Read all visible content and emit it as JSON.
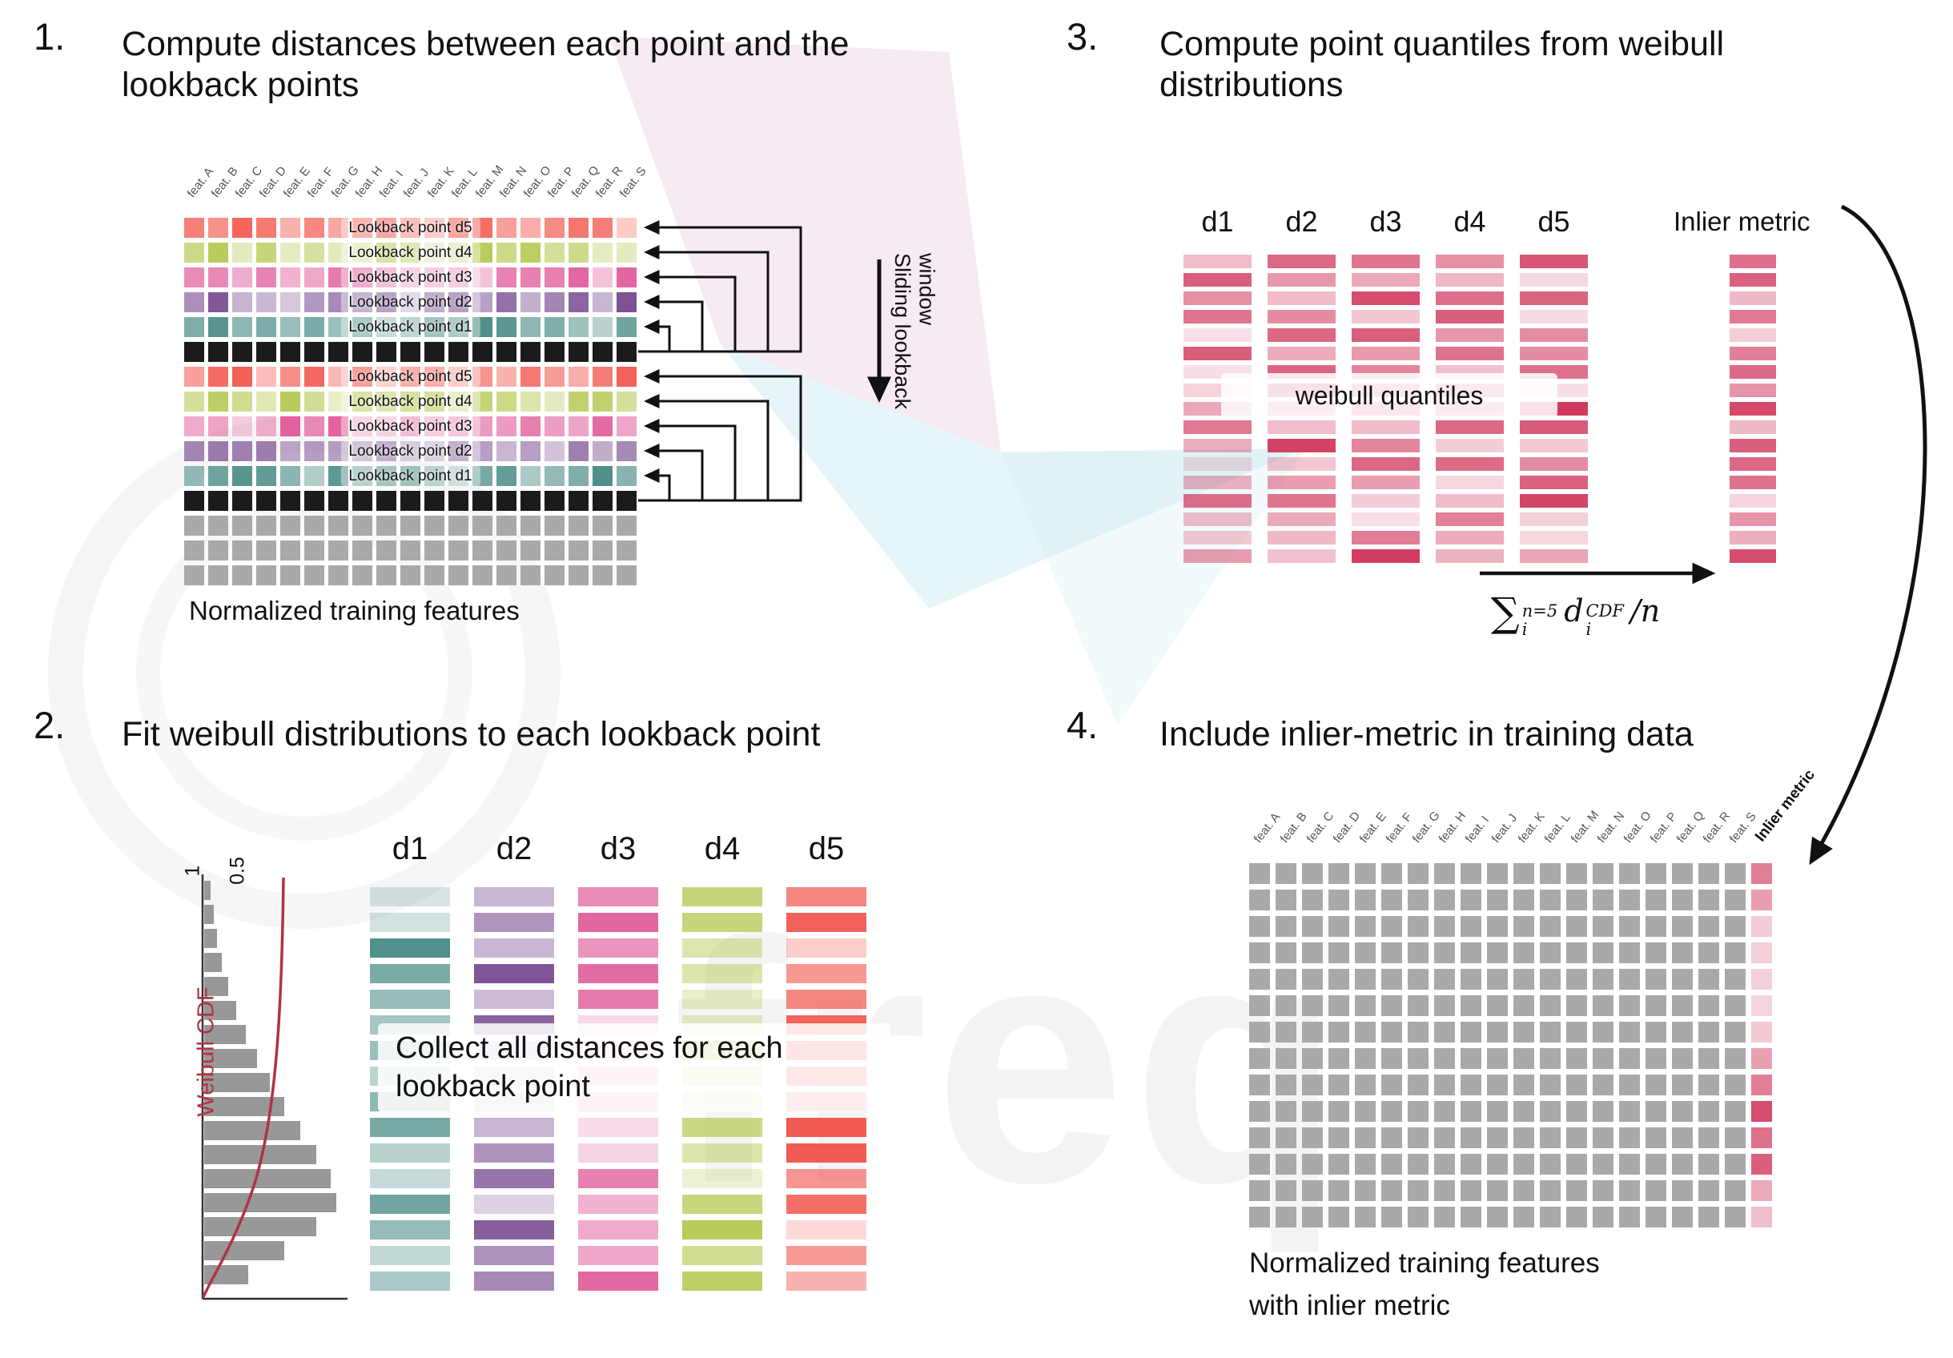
{
  "colors": {
    "d1": "#4f8f89",
    "d2": "#7d5295",
    "d3": "#e2619e",
    "d4": "#b4c74d",
    "d5": "#f2564d",
    "black_row": "#1b1b1b",
    "gray_cell": "#a9a9a9",
    "quantile": "#d13a5e",
    "cdf_curve": "#b03344"
  },
  "feature_labels": [
    "feat. A",
    "feat. B",
    "feat. C",
    "feat. D",
    "feat. E",
    "feat. F",
    "feat. G",
    "feat. H",
    "feat. I",
    "feat. J",
    "feat. K",
    "feat. L",
    "feat. M",
    "feat. N",
    "feat. O",
    "feat. P",
    "feat. Q",
    "feat. R",
    "feat. S"
  ],
  "step1": {
    "number": "1.",
    "title": "Compute distances between each point and the lookback points",
    "caption": "Normalized training features",
    "sliding_window_label": "Sliding lookback window",
    "grid_rows": [
      {
        "kind": "d5",
        "label": "Lookback point d5"
      },
      {
        "kind": "d4",
        "label": "Lookback point d4"
      },
      {
        "kind": "d3",
        "label": "Lookback point d3"
      },
      {
        "kind": "d2",
        "label": "Lookback point d2"
      },
      {
        "kind": "d1",
        "label": "Lookback point d1"
      },
      {
        "kind": "black"
      },
      {
        "kind": "d5",
        "label": "Lookback point d5"
      },
      {
        "kind": "d4",
        "label": "Lookback point d4"
      },
      {
        "kind": "d3",
        "label": "Lookback point d3"
      },
      {
        "kind": "d2",
        "label": "Lookback point d2"
      },
      {
        "kind": "d1",
        "label": "Lookback point d1"
      },
      {
        "kind": "black"
      },
      {
        "kind": "gray"
      },
      {
        "kind": "gray"
      },
      {
        "kind": "gray"
      }
    ]
  },
  "step2": {
    "number": "2.",
    "title": "Fit weibull distributions to each lookback point",
    "columns": [
      "d1",
      "d2",
      "d3",
      "d4",
      "d5"
    ],
    "bars_per_column": 16,
    "overlay": "Collect all distances for each lookback point",
    "histogram": {
      "ylabel": "Weibull CDF",
      "tick_1": "1",
      "tick_05": "0.5",
      "bar_lengths": [
        8,
        12,
        16,
        22,
        30,
        40,
        52,
        66,
        82,
        100,
        120,
        140,
        158,
        165,
        140,
        100,
        55
      ]
    }
  },
  "step3": {
    "number": "3.",
    "title": "Compute point quantiles from weibull distributions",
    "columns": [
      "d1",
      "d2",
      "d3",
      "d4",
      "d5"
    ],
    "bars_per_column": 17,
    "overlay": "weibull quantiles",
    "inlier_label": "Inlier metric",
    "formula": {
      "sigma": "∑",
      "upper": "n=5",
      "lower": "i",
      "term": "d",
      "term_sup": "CDF",
      "term_sub": "i",
      "tail": "/n"
    }
  },
  "step4": {
    "number": "4.",
    "title": "Include inlier-metric in training data",
    "caption_line1": "Normalized training features",
    "caption_line2": "with inlier metric",
    "inlier_col_label": "Inlier metric",
    "rows": 14,
    "cols": 20
  },
  "watermark": {
    "text": "freq"
  }
}
